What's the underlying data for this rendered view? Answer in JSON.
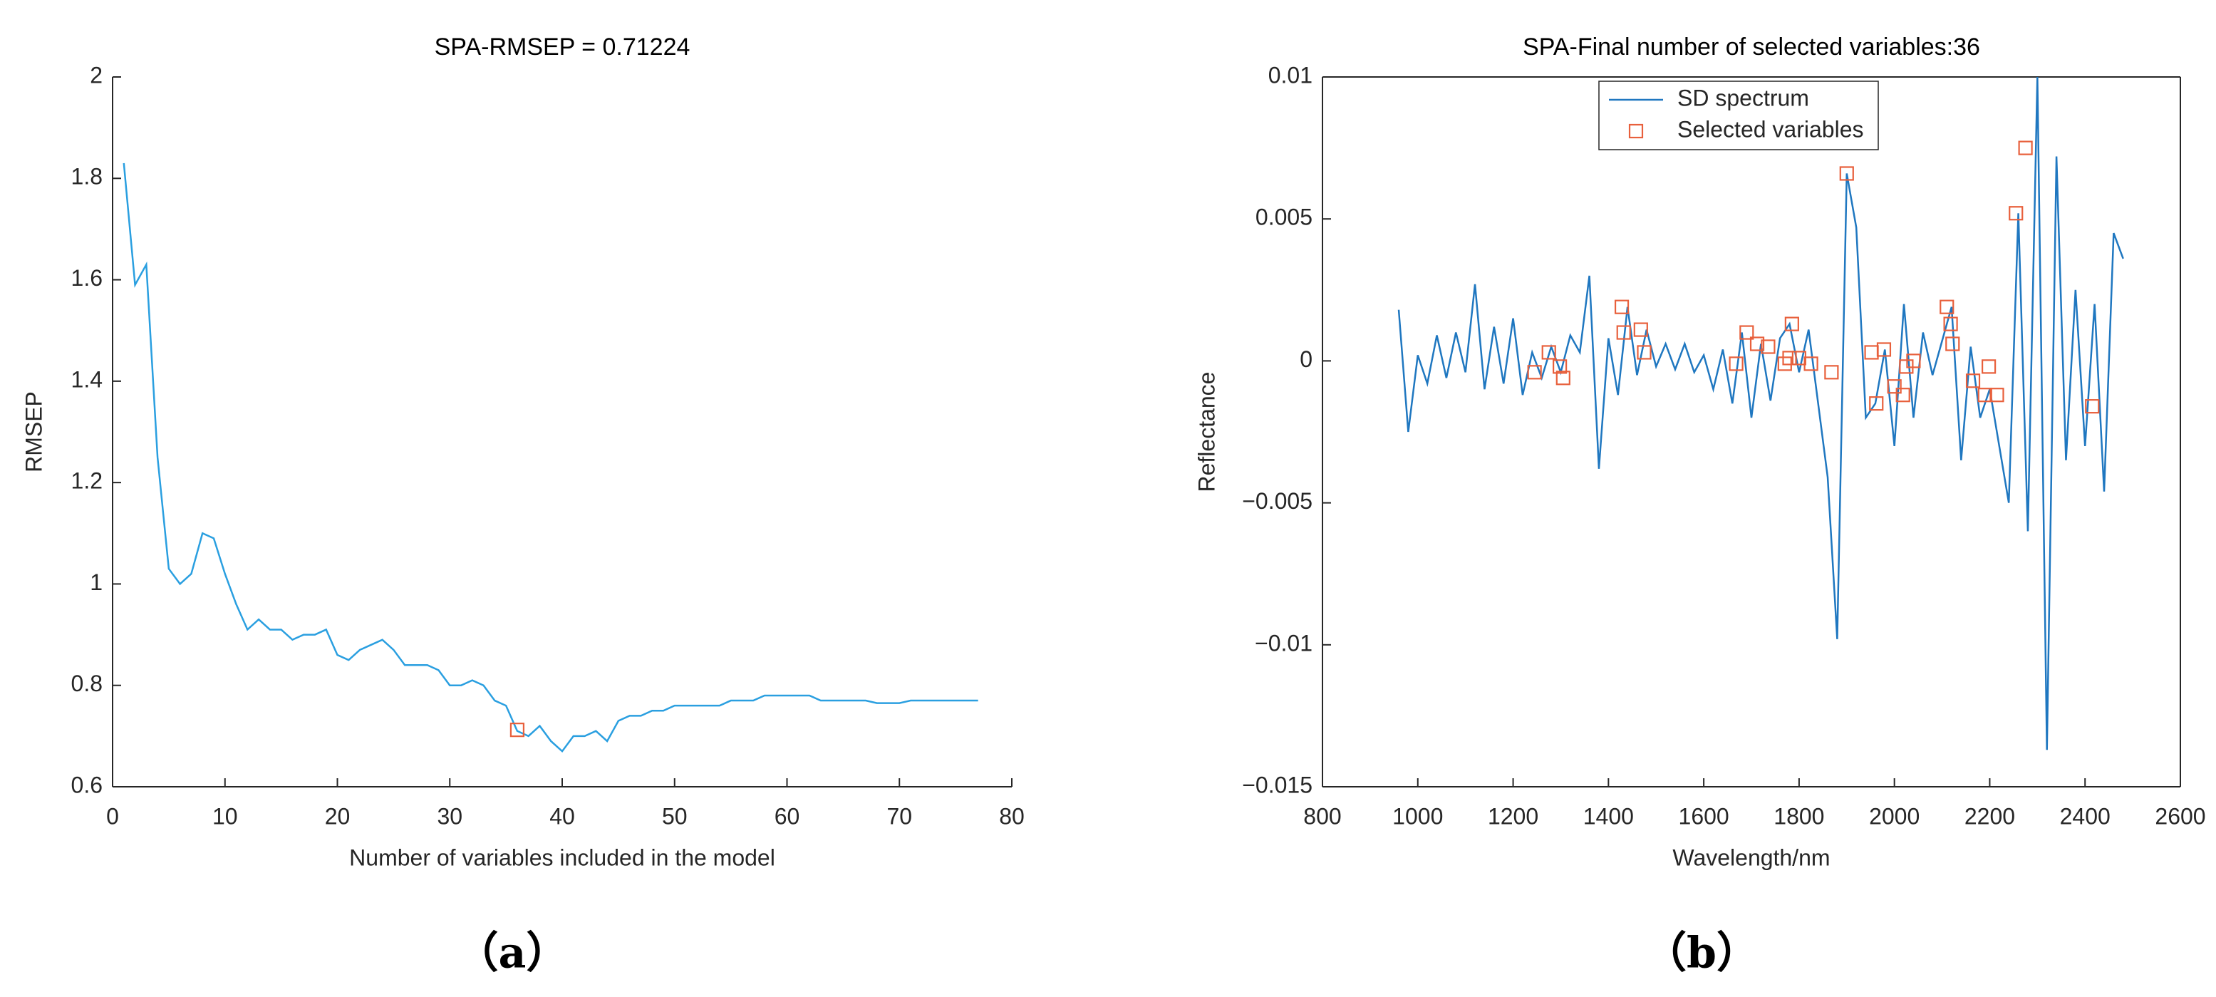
{
  "chart_data": [
    {
      "type": "line",
      "title": "SPA-RMSEP = 0.71224",
      "xlabel": "Number of variables included in the model",
      "ylabel": "RMSEP",
      "caption": "（a）",
      "xlim": [
        0,
        80
      ],
      "xticks": [
        0,
        10,
        20,
        30,
        40,
        50,
        60,
        70,
        80
      ],
      "ylim": [
        0.6,
        2
      ],
      "yticks": [
        0.6,
        0.8,
        1,
        1.2,
        1.4,
        1.6,
        1.8,
        2
      ],
      "legend": false,
      "series": [
        {
          "mode": "line",
          "color": "#2a9fe0",
          "x": [
            1,
            2,
            3,
            4,
            5,
            6,
            7,
            8,
            9,
            10,
            11,
            12,
            13,
            14,
            15,
            16,
            17,
            18,
            19,
            20,
            21,
            22,
            23,
            24,
            25,
            26,
            27,
            28,
            29,
            30,
            31,
            32,
            33,
            34,
            35,
            36,
            37,
            38,
            39,
            40,
            41,
            42,
            43,
            44,
            45,
            46,
            47,
            48,
            49,
            50,
            51,
            52,
            53,
            54,
            55,
            56,
            57,
            58,
            59,
            60,
            61,
            62,
            63,
            64,
            65,
            66,
            67,
            68,
            69,
            70,
            71,
            72,
            73,
            74,
            75,
            76,
            77
          ],
          "values": [
            1.83,
            1.59,
            1.63,
            1.25,
            1.03,
            1.0,
            1.02,
            1.1,
            1.09,
            1.02,
            0.96,
            0.91,
            0.93,
            0.91,
            0.91,
            0.89,
            0.9,
            0.9,
            0.91,
            0.86,
            0.85,
            0.87,
            0.88,
            0.89,
            0.87,
            0.84,
            0.84,
            0.84,
            0.83,
            0.8,
            0.8,
            0.81,
            0.8,
            0.77,
            0.76,
            0.71,
            0.7,
            0.72,
            0.69,
            0.67,
            0.7,
            0.7,
            0.71,
            0.69,
            0.73,
            0.74,
            0.74,
            0.75,
            0.75,
            0.76,
            0.76,
            0.76,
            0.76,
            0.76,
            0.77,
            0.77,
            0.77,
            0.78,
            0.78,
            0.78,
            0.78,
            0.78,
            0.77,
            0.77,
            0.77,
            0.77,
            0.77,
            0.765,
            0.765,
            0.765,
            0.77,
            0.77,
            0.77,
            0.77,
            0.77,
            0.77,
            0.77
          ]
        },
        {
          "mode": "markers",
          "color": "#e8603c",
          "x": [
            36
          ],
          "values": [
            0.71224
          ]
        }
      ]
    },
    {
      "type": "line",
      "title": "SPA-Final number of selected variables:36",
      "xlabel": "Wavelength/nm",
      "ylabel": "Reflectance",
      "caption": "（b）",
      "xlim": [
        800,
        2600
      ],
      "xticks": [
        800,
        1000,
        1200,
        1400,
        1600,
        1800,
        2000,
        2200,
        2400,
        2600
      ],
      "ylim": [
        -0.015,
        0.01
      ],
      "yticks": [
        {
          "value": -0.015,
          "label": "−0.015"
        },
        {
          "value": -0.01,
          "label": "−0.01"
        },
        {
          "value": -0.005,
          "label": "−0.005"
        },
        0,
        0.005,
        0.01
      ],
      "legend": true,
      "series": [
        {
          "name": "SD spectrum",
          "mode": "line",
          "color": "#1f77c0",
          "x": [
            960,
            980,
            1000,
            1020,
            1040,
            1060,
            1080,
            1100,
            1120,
            1140,
            1160,
            1180,
            1200,
            1220,
            1240,
            1260,
            1280,
            1300,
            1320,
            1340,
            1360,
            1380,
            1400,
            1420,
            1440,
            1460,
            1480,
            1500,
            1520,
            1540,
            1560,
            1580,
            1600,
            1620,
            1640,
            1660,
            1680,
            1700,
            1720,
            1740,
            1760,
            1780,
            1800,
            1820,
            1840,
            1860,
            1880,
            1900,
            1920,
            1940,
            1960,
            1980,
            2000,
            2020,
            2040,
            2060,
            2080,
            2100,
            2120,
            2140,
            2160,
            2180,
            2200,
            2220,
            2240,
            2260,
            2280,
            2300,
            2320,
            2340,
            2360,
            2380,
            2400,
            2420,
            2440,
            2460,
            2480
          ],
          "values": [
            0.0018,
            -0.0025,
            0.0002,
            -0.0008,
            0.0009,
            -0.0006,
            0.001,
            -0.0004,
            0.0027,
            -0.001,
            0.0012,
            -0.0008,
            0.0015,
            -0.0012,
            0.0003,
            -0.0006,
            0.0005,
            -0.0004,
            0.0009,
            0.0003,
            0.003,
            -0.0038,
            0.0008,
            -0.0012,
            0.0019,
            -0.0005,
            0.0011,
            -0.0002,
            0.0006,
            -0.0003,
            0.0006,
            -0.0004,
            0.0002,
            -0.001,
            0.0004,
            -0.0015,
            0.001,
            -0.002,
            0.0006,
            -0.0014,
            0.0008,
            0.0013,
            -0.0004,
            0.0011,
            -0.0015,
            -0.0041,
            -0.0098,
            0.0066,
            0.0047,
            -0.002,
            -0.0015,
            0.0004,
            -0.003,
            0.002,
            -0.002,
            0.001,
            -0.0005,
            0.0007,
            0.0019,
            -0.0035,
            0.0005,
            -0.002,
            -0.001,
            -0.003,
            -0.005,
            0.0052,
            -0.006,
            0.01,
            -0.0137,
            0.0072,
            -0.0035,
            0.0025,
            -0.003,
            0.002,
            -0.0046,
            0.0045,
            0.0036
          ]
        },
        {
          "name": "Selected variables",
          "mode": "markers",
          "color": "#e8603c",
          "x": [
            1245,
            1275,
            1298,
            1305,
            1428,
            1432,
            1468,
            1475,
            1668,
            1690,
            1712,
            1735,
            1770,
            1780,
            1785,
            1800,
            1825,
            1868,
            1900,
            1952,
            1962,
            1978,
            2000,
            2018,
            2025,
            2040,
            2110,
            2118,
            2122,
            2165,
            2190,
            2198,
            2215,
            2255,
            2275,
            2415
          ],
          "values": [
            -0.0004,
            0.0003,
            -0.0002,
            -0.0006,
            0.0019,
            0.001,
            0.0011,
            0.0003,
            -0.0001,
            0.001,
            0.0006,
            0.0005,
            -0.0001,
            0.0001,
            0.0013,
            0.0001,
            -0.0001,
            -0.0004,
            0.0066,
            0.0003,
            -0.0015,
            0.0004,
            -0.0009,
            -0.0012,
            -0.0002,
            0,
            0.0019,
            0.0013,
            0.0006,
            -0.0007,
            -0.0012,
            -0.0002,
            -0.0012,
            0.0052,
            0.0075,
            -0.0016
          ]
        }
      ]
    }
  ]
}
